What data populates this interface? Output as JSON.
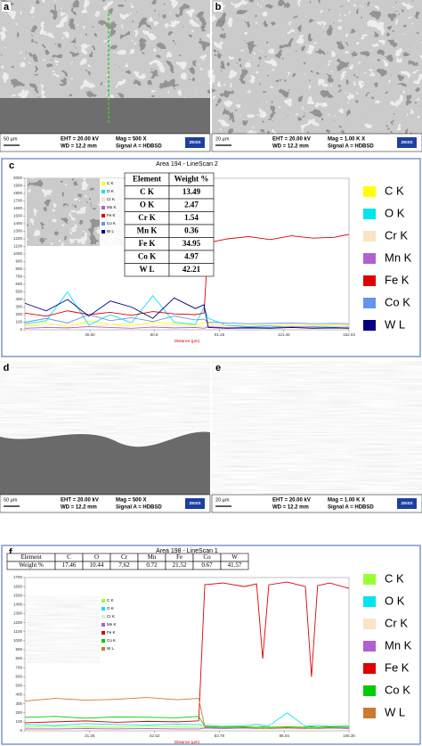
{
  "images": [
    {
      "label": "a",
      "scale": "50 µm",
      "eht": "EHT = 20.00 kV",
      "wd": "WD = 12.2 mm",
      "mag": "Mag =  500 X",
      "signal": "Signal A = HDBSD",
      "logo": "ZEISS"
    },
    {
      "label": "b",
      "scale": "20 µm",
      "eht": "EHT = 20.00 kV",
      "wd": "WD = 12.2 mm",
      "mag": "Mag =  1.00 K X",
      "signal": "Signal A = HDBSD",
      "logo": "ZEISS"
    },
    {
      "label": "d",
      "scale": "50 µm",
      "eht": "EHT = 20.00 kV",
      "wd": "WD = 12.2 mm",
      "mag": "Mag =  500 X",
      "signal": "Signal A = HDBSD",
      "logo": "ZEISS"
    },
    {
      "label": "e",
      "scale": "20 µm",
      "eht": "EHT = 20.00 kV",
      "wd": "WD = 12.2 mm",
      "mag": "Mag =  1.00 K X",
      "signal": "Signal A = HDBSD",
      "logo": "ZEISS"
    }
  ],
  "chart_data": [
    {
      "type": "line",
      "label": "c",
      "title": "Area 194 - LineScan 2",
      "xlabel": "Distance (µm)",
      "xlim": [
        0,
        152.03
      ],
      "ylim": [
        0,
        2000
      ],
      "xticks": [
        {
          "value": 30.5,
          "label": "30.50"
        },
        {
          "value": 60.6,
          "label": "60.6"
        },
        91.26,
        121.46,
        152.03
      ],
      "yticks": [
        0,
        100,
        200,
        300,
        400,
        500,
        600,
        700,
        800,
        900,
        1000,
        1100,
        1200,
        1300,
        1400,
        1500,
        1600,
        1700,
        1800,
        1900,
        2000
      ],
      "table": {
        "orientation": "vertical",
        "header": [
          "Element",
          "Weight %"
        ],
        "rows": [
          [
            "C K",
            13.49
          ],
          [
            "O K",
            2.47
          ],
          [
            "Cr K",
            1.54
          ],
          [
            "Mn K",
            0.36
          ],
          [
            "Fe K",
            34.95
          ],
          [
            "Co K",
            4.97
          ],
          [
            "W L",
            42.21
          ]
        ]
      },
      "x": [
        0,
        10,
        20,
        30,
        40,
        50,
        60,
        70,
        80,
        84,
        86,
        95,
        105,
        115,
        125,
        135,
        145,
        152
      ],
      "series": [
        {
          "name": "C K",
          "color": "#ffff00",
          "values": [
            60,
            90,
            40,
            120,
            70,
            50,
            100,
            80,
            60,
            90,
            80,
            50,
            60,
            50,
            60,
            50,
            55,
            50
          ]
        },
        {
          "name": "O K",
          "color": "#00e5ee",
          "values": [
            80,
            120,
            500,
            60,
            200,
            90,
            450,
            100,
            70,
            300,
            150,
            60,
            40,
            50,
            30,
            40,
            35,
            30
          ]
        },
        {
          "name": "Cr K",
          "color": "#fbe3c6",
          "values": [
            50,
            60,
            80,
            40,
            70,
            90,
            50,
            60,
            40,
            50,
            60,
            70,
            60,
            70,
            65,
            60,
            70,
            65
          ]
        },
        {
          "name": "Mn K",
          "color": "#b060d0",
          "values": [
            20,
            30,
            25,
            40,
            30,
            20,
            35,
            25,
            30,
            20,
            40,
            30,
            35,
            30,
            40,
            35,
            30,
            35
          ]
        },
        {
          "name": "Fe K",
          "color": "#e00000",
          "values": [
            220,
            180,
            250,
            200,
            230,
            190,
            240,
            210,
            200,
            220,
            1150,
            1200,
            1230,
            1190,
            1240,
            1210,
            1220,
            1260
          ]
        },
        {
          "name": "Co K",
          "color": "#6495ed",
          "values": [
            100,
            150,
            90,
            200,
            120,
            160,
            110,
            180,
            130,
            140,
            100,
            90,
            80,
            85,
            90,
            80,
            85,
            80
          ]
        },
        {
          "name": "W L",
          "color": "#000080",
          "values": [
            350,
            250,
            400,
            180,
            380,
            300,
            150,
            420,
            280,
            330,
            30,
            20,
            25,
            20,
            30,
            20,
            25,
            20
          ]
        }
      ]
    },
    {
      "type": "line",
      "label": "f",
      "title": "Area 198 - LineScan 1",
      "xlabel": "Distance (µm)",
      "xlim": [
        0,
        106.3
      ],
      "ylim": [
        0,
        1700
      ],
      "xticks": [
        21.26,
        42.52,
        63.78,
        85.04,
        {
          "value": 106.3,
          "label": "106.30"
        }
      ],
      "yticks": [
        0,
        100,
        200,
        300,
        400,
        500,
        600,
        700,
        800,
        900,
        1000,
        1100,
        1200,
        1300,
        1400,
        1500,
        1600,
        1700
      ],
      "table": {
        "orientation": "horizontal",
        "header": [
          "Element",
          "Weight %"
        ],
        "rows": [
          [
            "C",
            17.46
          ],
          [
            "O",
            10.44
          ],
          [
            "Cr",
            7.62
          ],
          [
            "Mn",
            0.72
          ],
          [
            "Fe",
            21.52
          ],
          [
            "Co",
            0.67
          ],
          [
            "W",
            41.57
          ]
        ]
      },
      "x": [
        0,
        10,
        20,
        30,
        40,
        50,
        57,
        59,
        65,
        72,
        76,
        78,
        80,
        86,
        92,
        94,
        96,
        100,
        106.3
      ],
      "series": [
        {
          "name": "C K",
          "color": "#99ff33",
          "values": [
            40,
            50,
            45,
            40,
            50,
            45,
            40,
            35,
            30,
            35,
            30,
            35,
            30,
            35,
            30,
            35,
            30,
            35,
            30
          ]
        },
        {
          "name": "O K",
          "color": "#00e5ee",
          "values": [
            70,
            60,
            80,
            70,
            65,
            75,
            70,
            60,
            50,
            55,
            70,
            60,
            55,
            200,
            50,
            55,
            60,
            50,
            55
          ]
        },
        {
          "name": "Cr K",
          "color": "#fbe3c6",
          "values": [
            30,
            25,
            35,
            30,
            25,
            30,
            35,
            80,
            70,
            75,
            80,
            70,
            75,
            80,
            70,
            75,
            80,
            75,
            70
          ]
        },
        {
          "name": "Mn K",
          "color": "#b060d0",
          "values": [
            20,
            20,
            25,
            20,
            25,
            20,
            20,
            30,
            25,
            30,
            25,
            30,
            25,
            30,
            25,
            30,
            25,
            30,
            25
          ]
        },
        {
          "name": "Fe K",
          "color": "#e00000",
          "values": [
            90,
            100,
            110,
            95,
            105,
            100,
            110,
            1620,
            1640,
            1600,
            1630,
            800,
            1620,
            1650,
            1600,
            600,
            1610,
            1640,
            1580
          ]
        },
        {
          "name": "Co K",
          "color": "#00cc00",
          "values": [
            150,
            160,
            140,
            155,
            150,
            145,
            160,
            50,
            40,
            45,
            40,
            45,
            40,
            45,
            40,
            45,
            40,
            45,
            40
          ]
        },
        {
          "name": "W L",
          "color": "#cc7a30",
          "values": [
            330,
            360,
            340,
            350,
            370,
            345,
            360,
            40,
            30,
            35,
            30,
            25,
            30,
            35,
            30,
            25,
            30,
            35,
            30
          ]
        }
      ]
    }
  ]
}
